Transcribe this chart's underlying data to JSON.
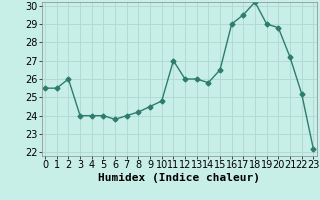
{
  "x": [
    0,
    1,
    2,
    3,
    4,
    5,
    6,
    7,
    8,
    9,
    10,
    11,
    12,
    13,
    14,
    15,
    16,
    17,
    18,
    19,
    20,
    21,
    22,
    23
  ],
  "y": [
    25.5,
    25.5,
    26.0,
    24.0,
    24.0,
    24.0,
    23.8,
    24.0,
    24.2,
    24.5,
    24.8,
    27.0,
    26.0,
    26.0,
    25.8,
    26.5,
    29.0,
    29.5,
    30.2,
    29.0,
    28.8,
    27.2,
    25.2,
    22.2
  ],
  "xlabel": "Humidex (Indice chaleur)",
  "ylim": [
    22,
    30
  ],
  "xlim": [
    -0.3,
    23.3
  ],
  "yticks": [
    22,
    23,
    24,
    25,
    26,
    27,
    28,
    29,
    30
  ],
  "xticks": [
    0,
    1,
    2,
    3,
    4,
    5,
    6,
    7,
    8,
    9,
    10,
    11,
    12,
    13,
    14,
    15,
    16,
    17,
    18,
    19,
    20,
    21,
    22,
    23
  ],
  "line_color": "#2d7d6e",
  "marker": "D",
  "marker_size": 2.5,
  "bg_color": "#c8eee8",
  "grid_color": "#b0d8d0",
  "xlabel_fontsize": 8,
  "tick_fontsize": 7,
  "line_width": 1.0
}
